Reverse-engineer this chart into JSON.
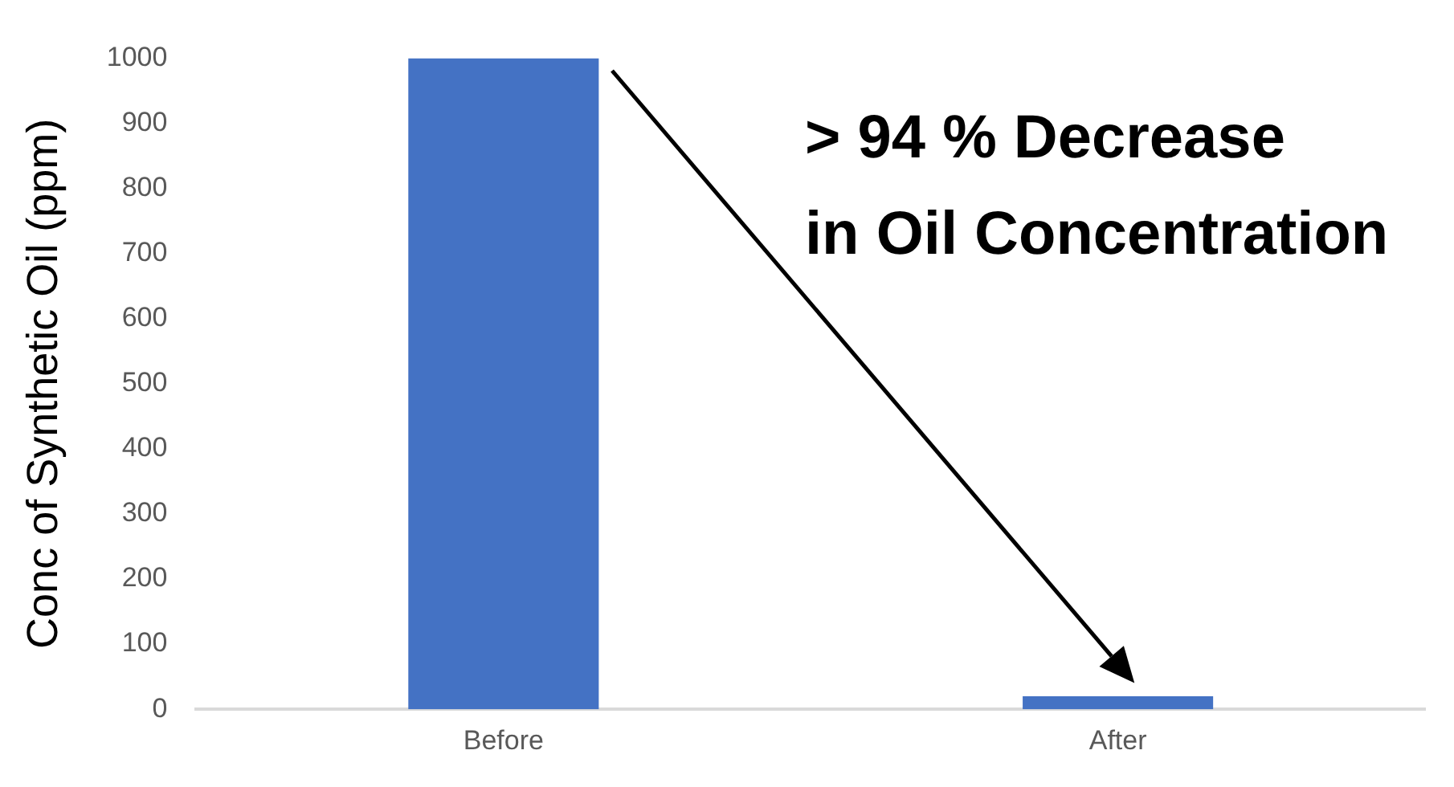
{
  "chart_data": {
    "type": "bar",
    "ylabel": "Conc of Synthetic Oil (ppm)",
    "categories": [
      "Before",
      "After"
    ],
    "values": [
      1000,
      20
    ],
    "color": "#4472c4",
    "ylim": [
      0,
      1000
    ],
    "yticks": [
      0,
      100,
      200,
      300,
      400,
      500,
      600,
      700,
      800,
      900,
      1000
    ],
    "annotations": [
      "> 94 % Decrease\nin Oil Concentration"
    ]
  }
}
